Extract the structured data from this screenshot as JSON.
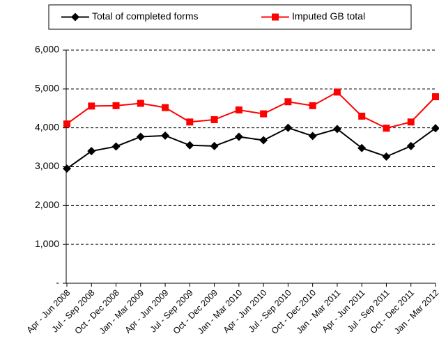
{
  "chart_data": {
    "type": "line",
    "categories": [
      "Apr - Jun 2008",
      "Jul - Sep 2008",
      "Oct - Dec 2008",
      "Jan - Mar 2009",
      "Apr - Jun 2009",
      "Jul - Sep 2009",
      "Oct - Dec 2009",
      "Jan - Mar 2010",
      "Apr - Jun 2010",
      "Jul - Sep 2010",
      "Oct - Dec 2010",
      "Jan - Mar 2011",
      "Apr - Jun 2011",
      "Jul - Sep 2011",
      "Oct - Dec 2011",
      "Jan - Mar 2012"
    ],
    "series": [
      {
        "name": "Total of completed forms",
        "color": "#000000",
        "marker": "diamond",
        "values": [
          2950,
          3400,
          3520,
          3770,
          3800,
          3550,
          3530,
          3770,
          3680,
          4000,
          3790,
          3970,
          3480,
          3260,
          3530,
          3990
        ]
      },
      {
        "name": "Imputed GB total",
        "color": "#ff0000",
        "marker": "square",
        "values": [
          4100,
          4560,
          4570,
          4630,
          4520,
          4150,
          4210,
          4460,
          4360,
          4670,
          4570,
          4920,
          4300,
          3990,
          4150,
          4800
        ]
      }
    ],
    "ylim": [
      0,
      6000
    ],
    "yticks": [
      {
        "value": 0,
        "label": "-"
      },
      {
        "value": 1000,
        "label": "1,000"
      },
      {
        "value": 2000,
        "label": "2,000"
      },
      {
        "value": 3000,
        "label": "3,000"
      },
      {
        "value": 4000,
        "label": "4,000"
      },
      {
        "value": 5000,
        "label": "5,000"
      },
      {
        "value": 6000,
        "label": "6,000"
      }
    ],
    "grid": true,
    "legend": "top"
  }
}
